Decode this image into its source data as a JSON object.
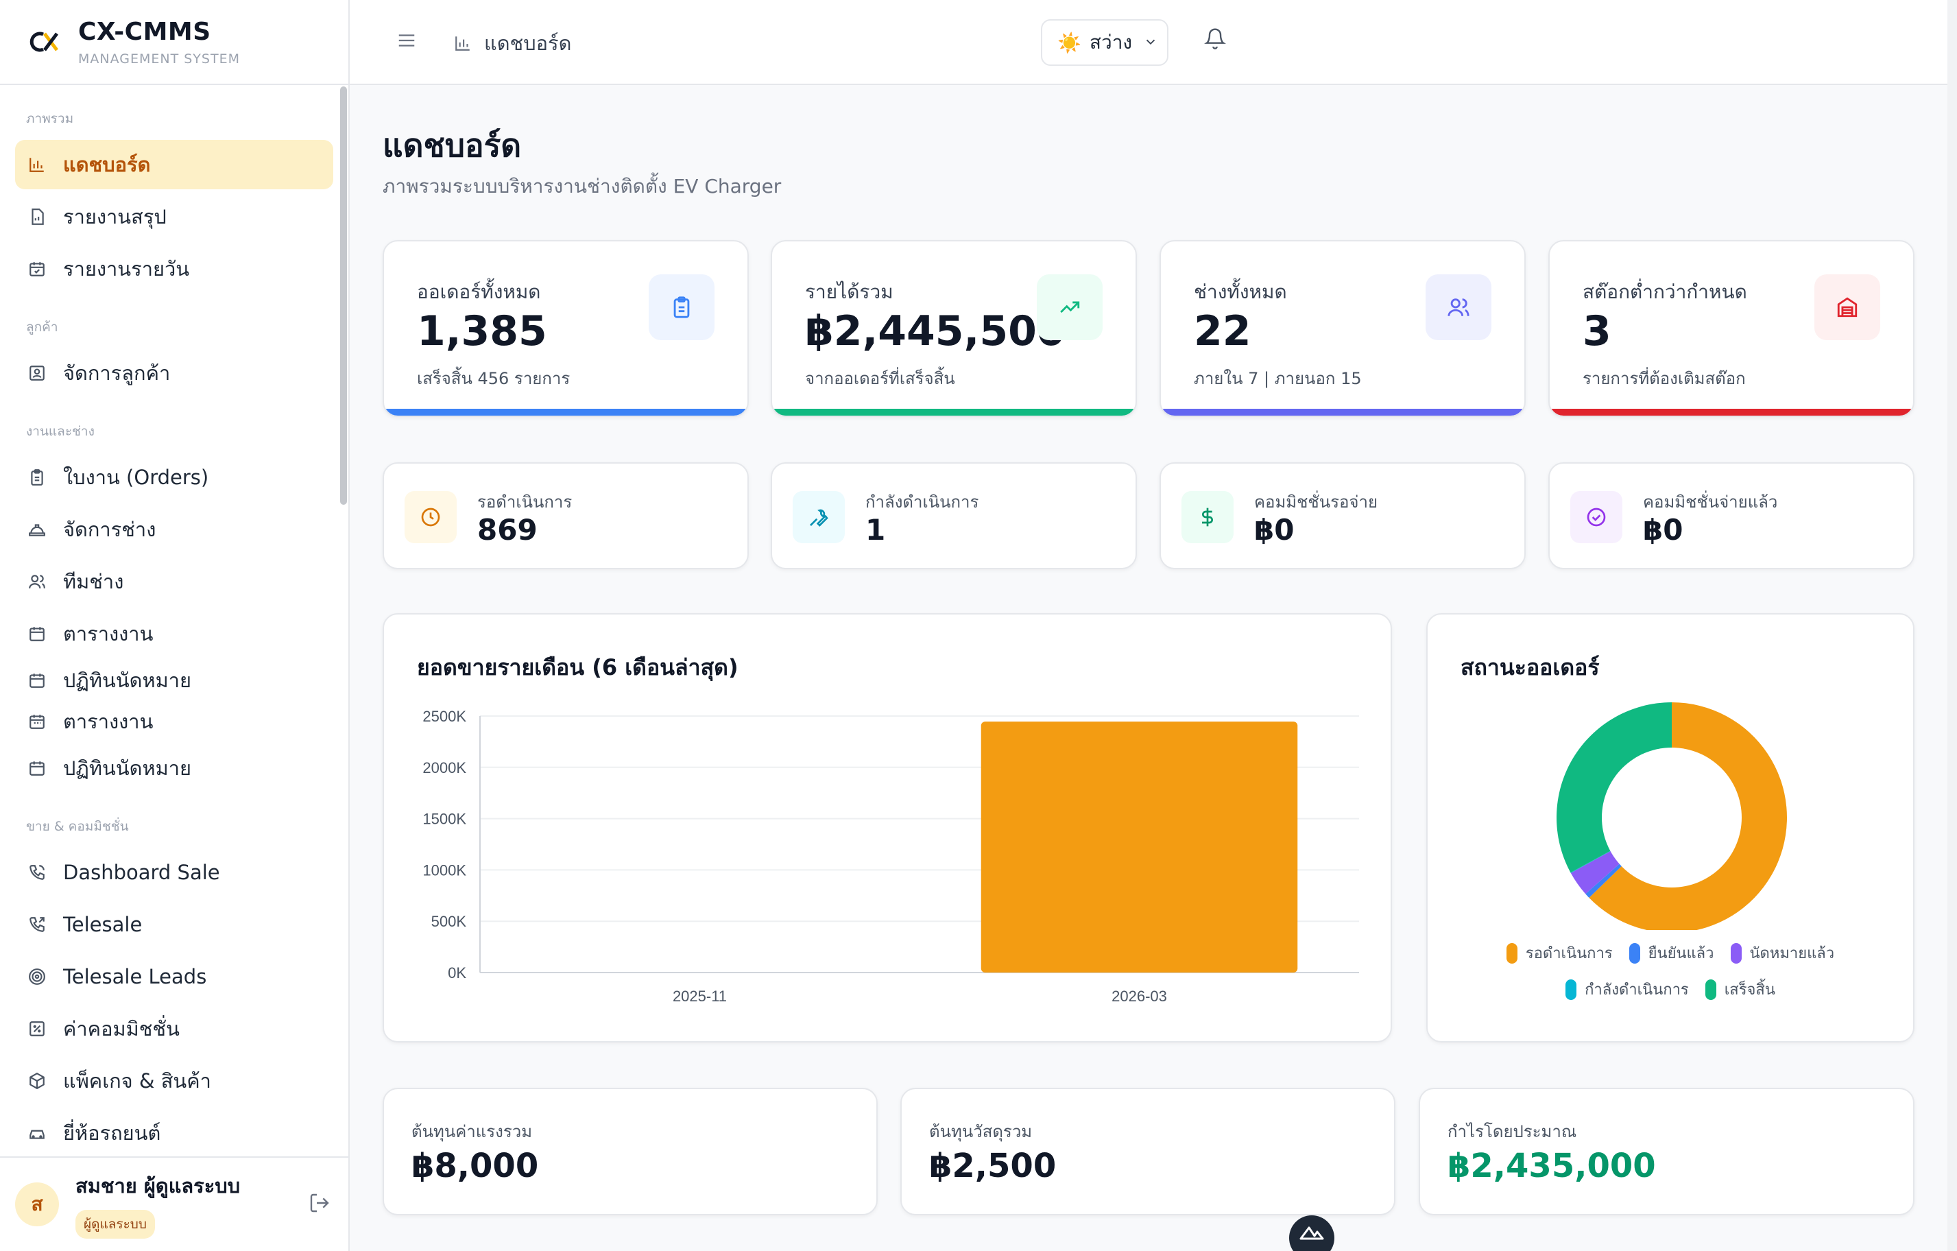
{
  "brand": {
    "name": "CX-CMMS",
    "subtitle": "MANAGEMENT SYSTEM"
  },
  "sidebar": {
    "sections": [
      {
        "title": "ภาพรวม",
        "items": [
          {
            "label": "แดชบอร์ด",
            "icon": "bar-chart-icon",
            "active": true
          },
          {
            "label": "รายงานสรุป",
            "icon": "report-icon"
          },
          {
            "label": "รายงานรายวัน",
            "icon": "calendar-check-icon"
          }
        ]
      },
      {
        "title": "ลูกค้า",
        "items": [
          {
            "label": "จัดการลูกค้า",
            "icon": "contact-icon"
          }
        ]
      },
      {
        "title": "งานและช่าง",
        "items": [
          {
            "label": "ใบงาน (Orders)",
            "icon": "clipboard-icon"
          },
          {
            "label": "จัดการช่าง",
            "icon": "hard-hat-icon"
          },
          {
            "label": "ทีมช่าง",
            "icon": "users-icon"
          },
          {
            "label": "ตารางงาน",
            "icon": "calendar-icon"
          },
          {
            "label": "ปฏิทินนัดหมาย",
            "icon": "calendar-icon"
          },
          {
            "label": "ตารางงาน",
            "icon": "calendar-icon"
          },
          {
            "label": "ปฏิทินนัดหมาย",
            "icon": "calendar-icon"
          }
        ]
      },
      {
        "title": "ขาย & คอมมิชชั่น",
        "items": [
          {
            "label": "Dashboard Sale",
            "icon": "phone-icon"
          },
          {
            "label": "Telesale",
            "icon": "phone-outgoing-icon"
          },
          {
            "label": "Telesale Leads",
            "icon": "target-icon"
          },
          {
            "label": "ค่าคอมมิชชั่น",
            "icon": "percent-icon"
          },
          {
            "label": "แพ็คเกจ & สินค้า",
            "icon": "package-icon"
          },
          {
            "label": "ยี่ห้อรถยนต์",
            "icon": "car-icon"
          }
        ]
      }
    ],
    "user": {
      "initial": "ส",
      "name": "สมชาย ผู้ดูแลระบบ",
      "role": "ผู้ดูแลระบบ"
    }
  },
  "topbar": {
    "breadcrumb": "แดชบอร์ด",
    "theme_label": "สว่าง"
  },
  "page": {
    "title": "แดชบอร์ด",
    "subtitle": "ภาพรวมระบบบริหารงานช่างติดตั้ง EV Charger"
  },
  "stats": [
    {
      "label": "ออเดอร์ทั้งหมด",
      "value": "1,385",
      "note": "เสร็จสิ้น 456 รายการ",
      "icon": "clipboard-icon",
      "color": "#3b82f6",
      "bg": "#eef4ff"
    },
    {
      "label": "รายได้รวม",
      "value": "฿2,445,500",
      "note": "จากออเดอร์ที่เสร็จสิ้น",
      "icon": "trending-up-icon",
      "color": "#10b981",
      "bg": "#ecfdf5"
    },
    {
      "label": "ช่างทั้งหมด",
      "value": "22",
      "note": "ภายใน 7 | ภายนอก 15",
      "icon": "users-icon",
      "color": "#6366f1",
      "bg": "#eef0fe"
    },
    {
      "label": "สต๊อกต่ำกว่ากำหนด",
      "value": "3",
      "note": "รายการที่ต้องเติมสต๊อก",
      "icon": "warehouse-icon",
      "color": "#e0242d",
      "bg": "#fef0f0"
    }
  ],
  "mini_stats": [
    {
      "label": "รอดำเนินการ",
      "value": "869",
      "icon": "clock-icon",
      "color": "#d97706",
      "bg": "#fff8e6"
    },
    {
      "label": "กำลังดำเนินการ",
      "value": "1",
      "icon": "wrench-icon",
      "color": "#0891b2",
      "bg": "#ecfbfe"
    },
    {
      "label": "คอมมิชชั่นรอจ่าย",
      "value": "฿0",
      "icon": "dollar-icon",
      "color": "#059669",
      "bg": "#ecfdf5"
    },
    {
      "label": "คอมมิชชั่นจ่ายแล้ว",
      "value": "฿0",
      "icon": "check-circle-icon",
      "color": "#9333ea",
      "bg": "#f7f0fe"
    }
  ],
  "sales_panel": {
    "title": "ยอดขายรายเดือน (6 เดือนล่าสุด)"
  },
  "status_panel": {
    "title": "สถานะออเดอร์"
  },
  "chart_data": [
    {
      "type": "bar",
      "title": "ยอดขายรายเดือน (6 เดือนล่าสุด)",
      "categories": [
        "2025-11",
        "2026-03"
      ],
      "values": [
        0,
        2445500
      ],
      "ylim": [
        0,
        2500000
      ],
      "yticks": [
        "0K",
        "500K",
        "1000K",
        "1500K",
        "2000K",
        "2500K"
      ],
      "xlabel": "",
      "ylabel": "",
      "grid": true,
      "color": "#f39c12"
    },
    {
      "type": "pie",
      "title": "สถานะออเดอร์",
      "labels": [
        "รอดำเนินการ",
        "ยืนยันแล้ว",
        "นัดหมายแล้ว",
        "กำลังดำเนินการ",
        "เสร็จสิ้น"
      ],
      "values": [
        869,
        10,
        49,
        1,
        456
      ],
      "colors": [
        "#f39c12",
        "#3b82f6",
        "#8b5cf6",
        "#06b6d4",
        "#10b981"
      ],
      "legend": "bottom"
    }
  ],
  "costs": [
    {
      "label": "ต้นทุนค่าแรงรวม",
      "value": "฿8,000"
    },
    {
      "label": "ต้นทุนวัสดุรวม",
      "value": "฿2,500"
    },
    {
      "label": "กำไรโดยประมาณ",
      "value": "฿2,435,000"
    }
  ]
}
